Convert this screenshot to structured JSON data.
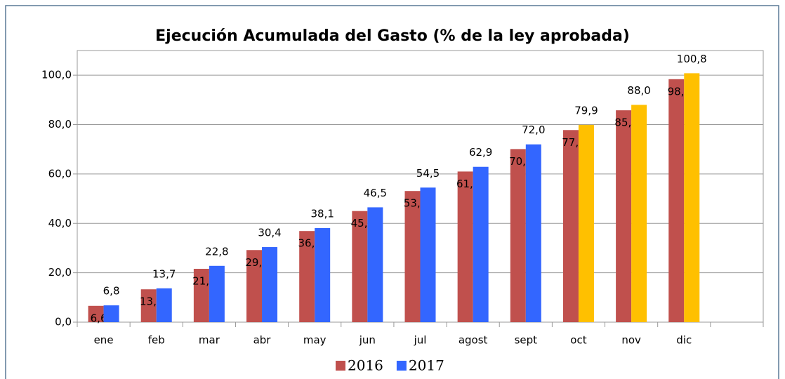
{
  "chart_data": {
    "type": "bar",
    "title": "Ejecución Acumulada del Gasto (% de la ley aprobada)",
    "categories": [
      "ene",
      "feb",
      "mar",
      "abr",
      "may",
      "jun",
      "jul",
      "agost",
      "sept",
      "oct",
      "nov",
      "dic",
      null
    ],
    "series": [
      {
        "name": "2016",
        "color": "#c0504d",
        "values": [
          6.6,
          13.3,
          21.6,
          29.2,
          36.9,
          45.0,
          53.1,
          61.0,
          70.1,
          77.8,
          85.8,
          98.4,
          null
        ],
        "value_labels": [
          "6,6",
          "13,3",
          "21,6",
          "29,2",
          "36,9",
          "45,0",
          "53,1",
          "61,0",
          "70,1",
          "77,8",
          "85,8",
          "98,4",
          null
        ]
      },
      {
        "name": "2017",
        "color": "#3366ff",
        "colors": [
          "#3366ff",
          "#3366ff",
          "#3366ff",
          "#3366ff",
          "#3366ff",
          "#3366ff",
          "#3366ff",
          "#3366ff",
          "#3366ff",
          "#ffc000",
          "#ffc000",
          "#ffc000",
          null
        ],
        "values": [
          6.8,
          13.7,
          22.8,
          30.4,
          38.1,
          46.5,
          54.5,
          62.9,
          72.0,
          79.9,
          88.0,
          100.8,
          null
        ],
        "value_labels": [
          "6,8",
          "13,7",
          "22,8",
          "30,4",
          "38,1",
          "46,5",
          "54,5",
          "62,9",
          "72,0",
          "79,9",
          "88,0",
          "100,8",
          null
        ]
      }
    ],
    "ylim": [
      0,
      110
    ],
    "yticks": [
      {
        "value": 0,
        "label": "0,0"
      },
      {
        "value": 20,
        "label": "20,0"
      },
      {
        "value": 40,
        "label": "40,0"
      },
      {
        "value": 60,
        "label": "60,0"
      },
      {
        "value": 80,
        "label": "80,0"
      },
      {
        "value": 100,
        "label": "100,0"
      }
    ],
    "grid": true,
    "legend": "bottom"
  }
}
